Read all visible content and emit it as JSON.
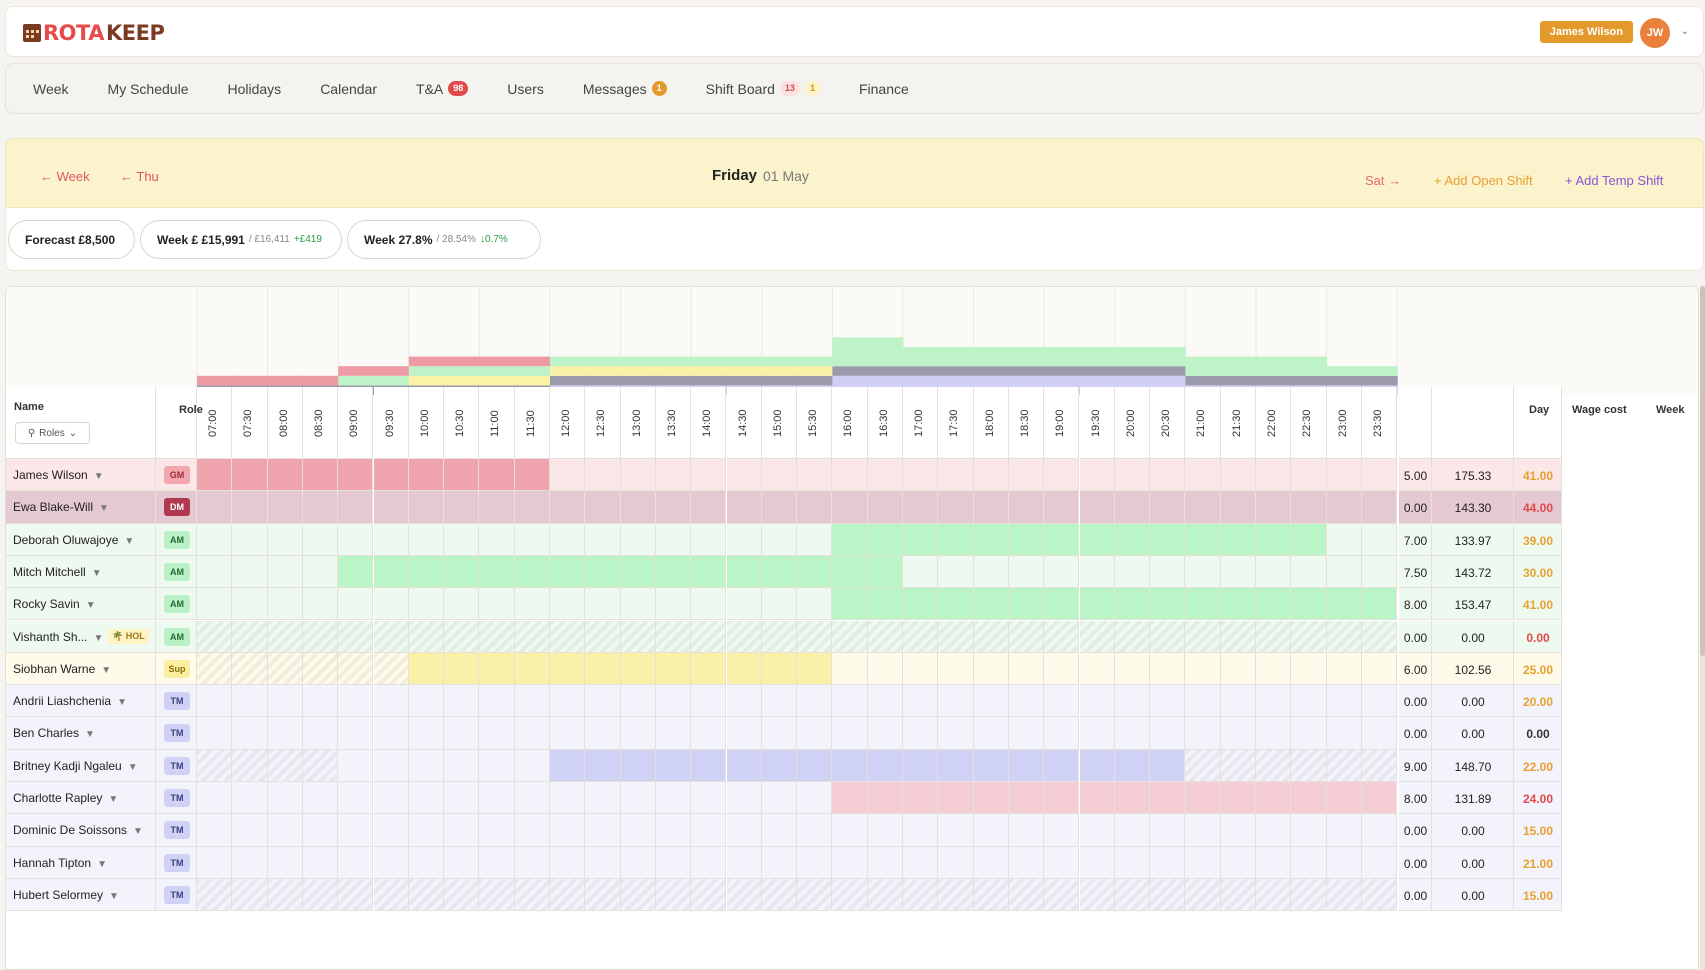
{
  "brand": {
    "rota": "ROTA",
    "keep": "KEEP"
  },
  "user": {
    "name": "James Wilson",
    "initials": "JW"
  },
  "nav": [
    {
      "label": "Week"
    },
    {
      "label": "My Schedule"
    },
    {
      "label": "Holidays"
    },
    {
      "label": "Calendar"
    },
    {
      "label": "T&A",
      "badges": [
        {
          "text": "98",
          "style": "red"
        }
      ]
    },
    {
      "label": "Users"
    },
    {
      "label": "Messages",
      "badges": [
        {
          "text": "1",
          "style": "orange"
        }
      ]
    },
    {
      "label": "Shift Board",
      "badges": [
        {
          "text": "13",
          "style": "pink"
        },
        {
          "text": "1",
          "style": "yellow"
        }
      ]
    },
    {
      "label": "Finance"
    }
  ],
  "day": {
    "back_week": "← Week",
    "back_day": "← Thu",
    "title": "Friday",
    "date": "01 May",
    "next_day": "Sat →",
    "add_open": "+ Add Open Shift",
    "add_temp": "+ Add Temp Shift"
  },
  "stats": [
    {
      "label": "Forecast £8,500",
      "sub": "",
      "delta": ""
    },
    {
      "label": "Week £ £15,991",
      "sub": "/ £16,411",
      "delta": "+£419"
    },
    {
      "label": "Week 27.8%",
      "sub": "/ 28.54%",
      "delta": "↓0.7%"
    }
  ],
  "grid": {
    "headers": {
      "name": "Name",
      "role": "Role",
      "roles_filter": "Roles",
      "day": "Day",
      "wage": "Wage cost",
      "week": "Week"
    },
    "times": [
      "07:00",
      "07:30",
      "08:00",
      "08:30",
      "09:00",
      "09:30",
      "10:00",
      "10:30",
      "11:00",
      "11:30",
      "12:00",
      "12:30",
      "13:00",
      "13:30",
      "14:00",
      "14:30",
      "15:00",
      "15:30",
      "16:00",
      "16:30",
      "17:00",
      "17:30",
      "18:00",
      "18:30",
      "19:00",
      "19:30",
      "20:00",
      "20:30",
      "21:00",
      "21:30",
      "22:00",
      "22:30",
      "23:00",
      "23:30"
    ],
    "employees": [
      {
        "name": "James Wilson",
        "role": "GM",
        "day": "5.00",
        "wage": "175.33",
        "week": "41.00",
        "shift": [
          0,
          10
        ],
        "hol": "",
        "week_color": "#e8a030"
      },
      {
        "name": "Ewa Blake-Will",
        "role": "DM",
        "day": "0.00",
        "wage": "143.30",
        "week": "44.00",
        "shift": null,
        "hol": "",
        "week_color": "#e04a4a"
      },
      {
        "name": "Deborah Oluwajoye",
        "role": "AM",
        "day": "7.00",
        "wage": "133.97",
        "week": "39.00",
        "shift": [
          18,
          32
        ],
        "hol": "",
        "week_color": "#e8a030"
      },
      {
        "name": "Mitch Mitchell",
        "role": "AM",
        "day": "7.50",
        "wage": "143.72",
        "week": "30.00",
        "shift": [
          4,
          20
        ],
        "hol": "",
        "week_color": "#e8a030"
      },
      {
        "name": "Rocky Savin",
        "role": "AM",
        "day": "8.00",
        "wage": "153.47",
        "week": "41.00",
        "shift": [
          18,
          34
        ],
        "hol": "",
        "week_color": "#e8a030"
      },
      {
        "name": "Vishanth Sh...",
        "role": "AM",
        "day": "0.00",
        "wage": "0.00",
        "week": "0.00",
        "shift": null,
        "hol": "🌴 HOL",
        "week_color": "#e04a4a"
      },
      {
        "name": "Siobhan Warne",
        "role": "Sup",
        "day": "6.00",
        "wage": "102.56",
        "week": "25.00",
        "shift": [
          6,
          18
        ],
        "hol": "",
        "week_color": "#e8a030"
      },
      {
        "name": "Andrii Liashchenia",
        "role": "TM",
        "day": "0.00",
        "wage": "0.00",
        "week": "20.00",
        "shift": null,
        "hol": "",
        "week_color": "#e8a030"
      },
      {
        "name": "Ben Charles",
        "role": "TM",
        "day": "0.00",
        "wage": "0.00",
        "week": "0.00",
        "shift": null,
        "hol": "",
        "week_color": "#333333"
      },
      {
        "name": "Britney Kadji Ngaleu",
        "role": "TM",
        "day": "9.00",
        "wage": "148.70",
        "week": "22.00",
        "shift": [
          10,
          28
        ],
        "hol": "",
        "week_color": "#e8a030"
      },
      {
        "name": "Charlotte Rapley",
        "role": "TM",
        "day": "8.00",
        "wage": "131.89",
        "week": "24.00",
        "shift": [
          18,
          34
        ],
        "hol": "",
        "week_color": "#e04a4a"
      },
      {
        "name": "Dominic De Soissons",
        "role": "TM",
        "day": "0.00",
        "wage": "0.00",
        "week": "15.00",
        "shift": null,
        "hol": "",
        "week_color": "#e8a030"
      },
      {
        "name": "Hannah Tipton",
        "role": "TM",
        "day": "0.00",
        "wage": "0.00",
        "week": "21.00",
        "shift": null,
        "hol": "",
        "week_color": "#e8a030"
      },
      {
        "name": "Hubert Selormey",
        "role": "TM",
        "day": "0.00",
        "wage": "0.00",
        "week": "15.00",
        "shift": null,
        "hol": "",
        "week_color": "#e8a030"
      }
    ]
  },
  "colors": {
    "GM": {
      "bg": "#f4a6ae",
      "fg": "#9c2a3a",
      "row": "#fbe6e8",
      "shift": "#f0a5ae"
    },
    "DM": {
      "bg": "#b0384f",
      "fg": "#fff",
      "row": "#e4c8d2",
      "shift": "#d9a8b8"
    },
    "AM": {
      "bg": "#b9f0c6",
      "fg": "#236b34",
      "row": "#eefaf0",
      "shift": "#baf5c8"
    },
    "Sup": {
      "bg": "#fbeea0",
      "fg": "#8a6d10",
      "row": "#fffbea",
      "shift": "#fbf0a8"
    },
    "TM": {
      "bg": "#cfd2f5",
      "fg": "#3a3f80",
      "row": "#f3f3fc",
      "shift": "#cfd1f5"
    },
    "Charlotte": {
      "shift": "#f5cdd4"
    }
  }
}
